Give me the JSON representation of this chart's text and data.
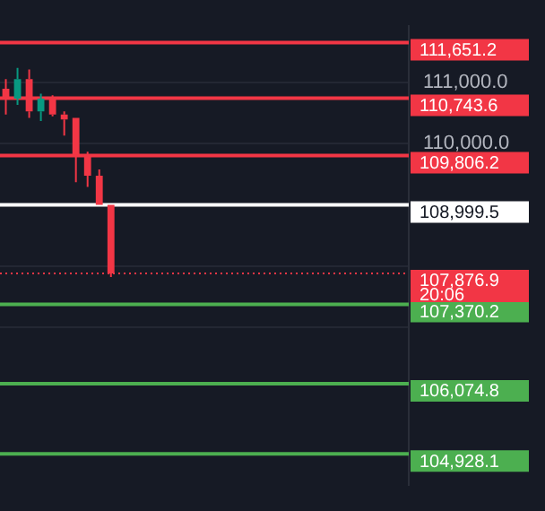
{
  "chart_data": {
    "type": "candlestick",
    "categories": [
      null,
      null,
      null,
      null,
      null,
      null,
      null,
      null,
      null,
      null,
      null,
      null,
      null,
      null,
      null,
      null,
      null,
      null,
      null,
      null,
      null,
      null,
      null,
      null,
      null,
      null,
      null,
      null,
      null,
      null,
      null,
      null,
      null,
      null,
      null
    ],
    "ohlc": [
      [
        110895,
        111053,
        110474,
        110737
      ],
      [
        110737,
        111237,
        110632,
        111053
      ],
      [
        111053,
        111211,
        110421,
        110526
      ],
      [
        110526,
        110816,
        110368,
        110737
      ],
      [
        110763,
        110790,
        110447,
        110474
      ],
      [
        110474,
        110526,
        110132,
        110395
      ],
      [
        110421,
        110421,
        109368,
        109816
      ],
      [
        109816,
        109868,
        109290,
        109474
      ],
      [
        109474,
        109579,
        109000,
        109000
      ],
      [
        109000,
        109000,
        107818,
        107877
      ],
      null,
      null,
      null,
      null,
      null,
      null,
      null,
      null,
      null,
      null,
      null,
      null,
      null,
      null,
      null,
      null,
      null,
      null,
      null,
      null,
      null,
      null,
      null,
      null,
      null
    ],
    "colors": [
      "#f23645",
      "#089981",
      "#f23645",
      "#089981",
      "#f23645",
      "#f23645",
      "#f23645",
      "#f23645",
      "#f23645",
      "#f23645",
      null,
      null,
      null,
      null,
      null,
      null,
      null,
      null,
      null,
      null,
      null,
      null,
      null,
      null,
      null,
      null,
      null,
      null,
      null,
      null,
      null,
      null,
      null,
      null,
      null
    ],
    "ylim": [
      104420,
      111920
    ],
    "yticks": [
      {
        "value": 107000,
        "label": null
      },
      {
        "value": 108000,
        "label": null
      },
      {
        "value": 109000,
        "label": null
      },
      {
        "value": 110000,
        "label": "110,000.0"
      },
      {
        "value": 111000,
        "label": "111,000.0"
      }
    ],
    "grid": "y",
    "tick_labels": "y",
    "ref_lines": [
      {
        "axis": "y",
        "value": 111651.2,
        "label": "111,651.2",
        "color": "#f23645"
      },
      {
        "axis": "y",
        "value": 110743.6,
        "label": "110,743.6",
        "color": "#f23645"
      },
      {
        "axis": "y",
        "value": 109806.2,
        "label": "109,806.2",
        "color": "#f23645"
      },
      {
        "axis": "y",
        "value": 108999.5,
        "label": "108,999.5",
        "color": "#ffffff"
      },
      {
        "axis": "y",
        "value": 107370.2,
        "label": "107,370.2",
        "color": "#4caf50"
      },
      {
        "axis": "y",
        "value": 106074.8,
        "label": "106,074.8",
        "color": "#4caf50"
      },
      {
        "axis": "y",
        "value": 104928.1,
        "label": "104,928.1",
        "color": "#4caf50"
      },
      {
        "axis": "y",
        "value": 107876.9,
        "label": "107,876.9",
        "color": "#f23645",
        "line_style": "dotted"
      }
    ],
    "annotations": [
      "20:06"
    ]
  }
}
